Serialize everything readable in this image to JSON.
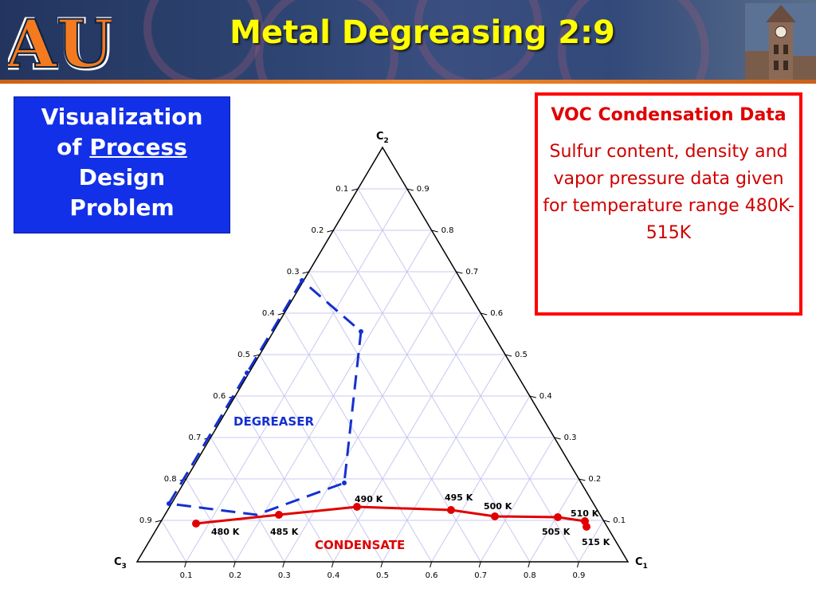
{
  "header": {
    "title": "Metal Degreasing  2:9",
    "logo_text": "AU",
    "colors": {
      "background": "#2e4472",
      "title": "#ffff00",
      "band": "#f08a2a",
      "logo_orange": "#f47a20",
      "logo_navy": "#0c2340"
    }
  },
  "visualization_box": {
    "line1": "Visualization",
    "line2_prefix": "of ",
    "line2_underlined": "Process",
    "line3": "Design",
    "line4": "Problem",
    "background": "#1230e8"
  },
  "voc_box": {
    "title": "VOC Condensation Data",
    "body": "Sulfur content, density and vapor pressure data given for temperature range 480K-515K",
    "border_color": "#ff0000"
  },
  "diagram": {
    "type": "ternary",
    "corners": {
      "top": "C",
      "top_sub": "2",
      "left": "C",
      "left_sub": "3",
      "right": "C",
      "right_sub": "1"
    },
    "left_axis_ticks": [
      "0.1",
      "0.2",
      "0.3",
      "0.4",
      "0.5",
      "0.6",
      "0.7",
      "0.8",
      "0.9"
    ],
    "right_axis_ticks": [
      "0.9",
      "0.8",
      "0.7",
      "0.6",
      "0.5",
      "0.4",
      "0.3",
      "0.2",
      "0.1"
    ],
    "bottom_axis_ticks": [
      "0.1",
      "0.2",
      "0.3",
      "0.4",
      "0.5",
      "0.6",
      "0.7",
      "0.8",
      "0.9"
    ],
    "regions": [
      {
        "label": "DEGREASER",
        "color": "#1530d0"
      },
      {
        "label": "CONDENSATE",
        "color": "#e00000"
      }
    ],
    "temperature_labels": [
      "480 K",
      "485 K",
      "490 K",
      "495 K",
      "500 K",
      "505 K",
      "510 K",
      "515 K"
    ],
    "colors": {
      "grid": "#c8c8f0",
      "degreaser": "#1530d0",
      "condensate": "#e00000",
      "triangle": "#000000"
    }
  }
}
